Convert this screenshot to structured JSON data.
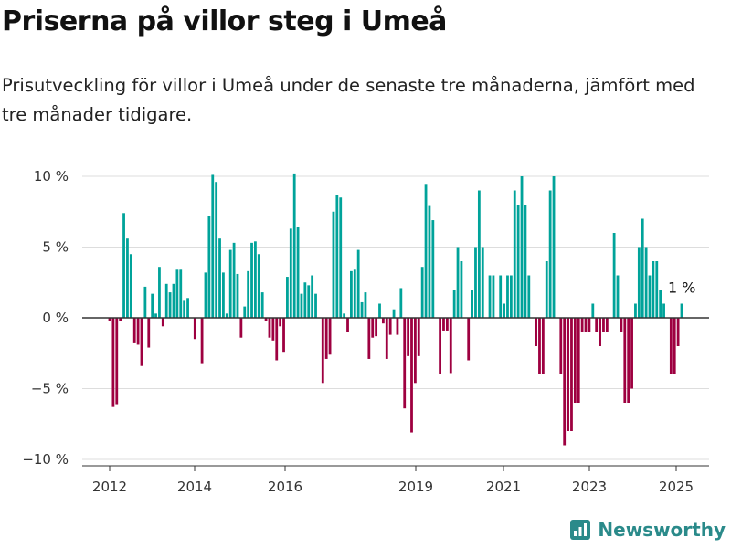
{
  "title": "Priserna på villor steg i Umeå",
  "subtitle": "Prisutveckling för villor i Umeå under de senaste tre månaderna, jämfört med tre månader tidigare.",
  "brand": {
    "name": "Newsworthy",
    "icon": "newsworthy-logo-icon",
    "color": "#2a8a8a"
  },
  "colors": {
    "positive": "#00a39a",
    "negative": "#9e0040",
    "grid": "#dddddd",
    "zero": "#333333"
  },
  "chart_data": {
    "type": "bar",
    "title": "Priserna på villor steg i Umeå",
    "xlabel": "",
    "ylabel": "",
    "ylim": [
      -10,
      10
    ],
    "yticks": [
      {
        "value": 10,
        "label": "10 %"
      },
      {
        "value": 5,
        "label": "5 %"
      },
      {
        "value": 0,
        "label": "0 %"
      },
      {
        "value": -5,
        "label": "−5 %"
      },
      {
        "value": -10,
        "label": "−10 %"
      }
    ],
    "xticks": [
      "2012",
      "2014",
      "2016",
      "2019",
      "2021",
      "2023",
      "2025"
    ],
    "annotation": {
      "text": "1 %",
      "value": 1
    },
    "values": [
      -0.2,
      -6.3,
      -6.1,
      -0.2,
      7.4,
      5.6,
      4.5,
      -1.8,
      -1.9,
      -3.4,
      2.2,
      -2.1,
      1.7,
      0.3,
      3.6,
      -0.6,
      2.4,
      1.8,
      2.4,
      3.4,
      3.4,
      1.2,
      1.4,
      0,
      -1.5,
      0,
      -3.2,
      3.2,
      7.2,
      10.1,
      9.6,
      5.6,
      3.2,
      0.3,
      4.8,
      5.3,
      3.1,
      -1.4,
      0.8,
      3.3,
      5.3,
      5.4,
      4.5,
      1.8,
      -0.2,
      -1.4,
      -1.6,
      -3,
      -0.6,
      -2.4,
      2.9,
      6.3,
      10.2,
      6.4,
      1.7,
      2.5,
      2.3,
      3,
      1.7,
      0,
      -4.6,
      -2.9,
      -2.6,
      7.5,
      8.7,
      8.5,
      0.3,
      -1,
      3.3,
      3.4,
      4.8,
      1.1,
      1.8,
      -2.9,
      -1.4,
      -1.3,
      1,
      -0.4,
      -2.9,
      -1.2,
      0.6,
      -1.2,
      2.1,
      -6.4,
      -2.7,
      -8.1,
      -4.6,
      -2.7,
      3.6,
      9.4,
      7.9,
      6.9,
      0,
      -4,
      -0.9,
      -0.9,
      -3.9,
      2,
      5,
      4,
      0,
      -3,
      2,
      5,
      9,
      5,
      0,
      3,
      3,
      0,
      3,
      1,
      3,
      3,
      9,
      8,
      10,
      8,
      3,
      0,
      -2,
      -4,
      -4,
      4,
      9,
      10,
      0,
      -4,
      -9,
      -8,
      -8,
      -6,
      -6,
      -1,
      -1,
      -1,
      1,
      -1,
      -2,
      -1,
      -1,
      0,
      6,
      3,
      -1,
      -6,
      -6,
      -5,
      1,
      5,
      7,
      5,
      3,
      4,
      4,
      2,
      1,
      0,
      -4,
      -4,
      -2,
      1
    ]
  }
}
